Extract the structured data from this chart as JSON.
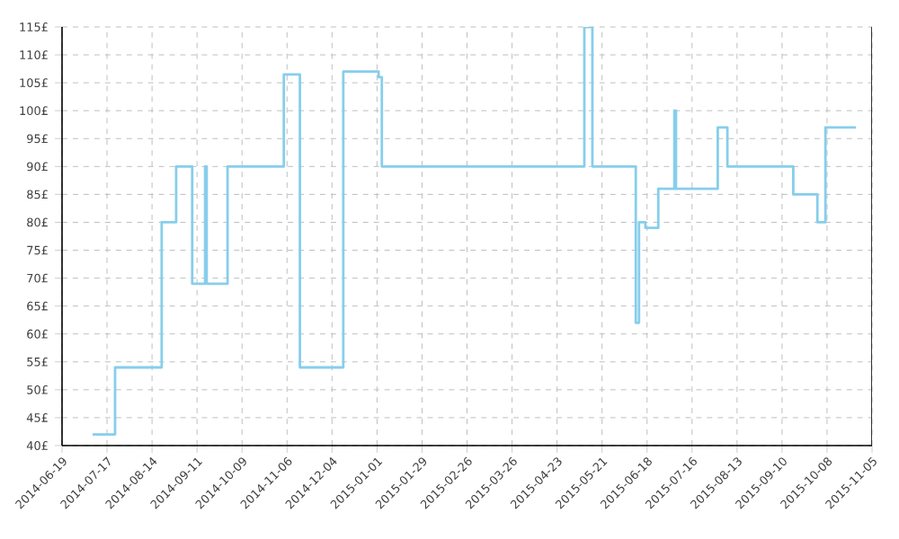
{
  "chart_data": {
    "type": "step",
    "color": "#87ceeb",
    "x": [
      "2014-07-08",
      "2014-07-22",
      "2014-08-20",
      "2014-08-29",
      "2014-09-08",
      "2014-09-16",
      "2014-09-17",
      "2014-09-30",
      "2014-11-04",
      "2014-11-14",
      "2014-12-11",
      "2015-01-02",
      "2015-01-04",
      "2015-05-10",
      "2015-05-15",
      "2015-06-11",
      "2015-06-13",
      "2015-06-17",
      "2015-06-25",
      "2015-07-05",
      "2015-07-06",
      "2015-08-01",
      "2015-08-07",
      "2015-09-17",
      "2015-10-02",
      "2015-10-07",
      "2015-10-26"
    ],
    "values": [
      42,
      54,
      80,
      90,
      69,
      90,
      69,
      90,
      106.5,
      54,
      107,
      106,
      90,
      115,
      90,
      62,
      80,
      79,
      86,
      100,
      86,
      97,
      90,
      85,
      80,
      97,
      97
    ],
    "xlim": [
      "2014-06-19",
      "2015-11-05"
    ],
    "xticks": [
      "2014-06-19",
      "2014-07-17",
      "2014-08-14",
      "2014-09-11",
      "2014-10-09",
      "2014-11-06",
      "2014-12-04",
      "2015-01-01",
      "2015-01-29",
      "2015-02-26",
      "2015-03-26",
      "2015-04-23",
      "2015-05-21",
      "2015-06-18",
      "2015-07-16",
      "2015-08-13",
      "2015-09-10",
      "2015-10-08",
      "2015-11-05"
    ],
    "ylim": [
      40,
      115
    ],
    "yticks": [
      {
        "value": 40,
        "label": "40£"
      },
      {
        "value": 45,
        "label": "45£"
      },
      {
        "value": 50,
        "label": "50£"
      },
      {
        "value": 55,
        "label": "55£"
      },
      {
        "value": 60,
        "label": "60£"
      },
      {
        "value": 65,
        "label": "65£"
      },
      {
        "value": 70,
        "label": "70£"
      },
      {
        "value": 75,
        "label": "75£"
      },
      {
        "value": 80,
        "label": "80£"
      },
      {
        "value": 85,
        "label": "85£"
      },
      {
        "value": 90,
        "label": "90£"
      },
      {
        "value": 95,
        "label": "95£"
      },
      {
        "value": 100,
        "label": "100£"
      },
      {
        "value": 105,
        "label": "105£"
      },
      {
        "value": 110,
        "label": "110£"
      },
      {
        "value": 115,
        "label": "115£"
      }
    ],
    "grid": true,
    "line_style": "solid",
    "marker": "none"
  }
}
